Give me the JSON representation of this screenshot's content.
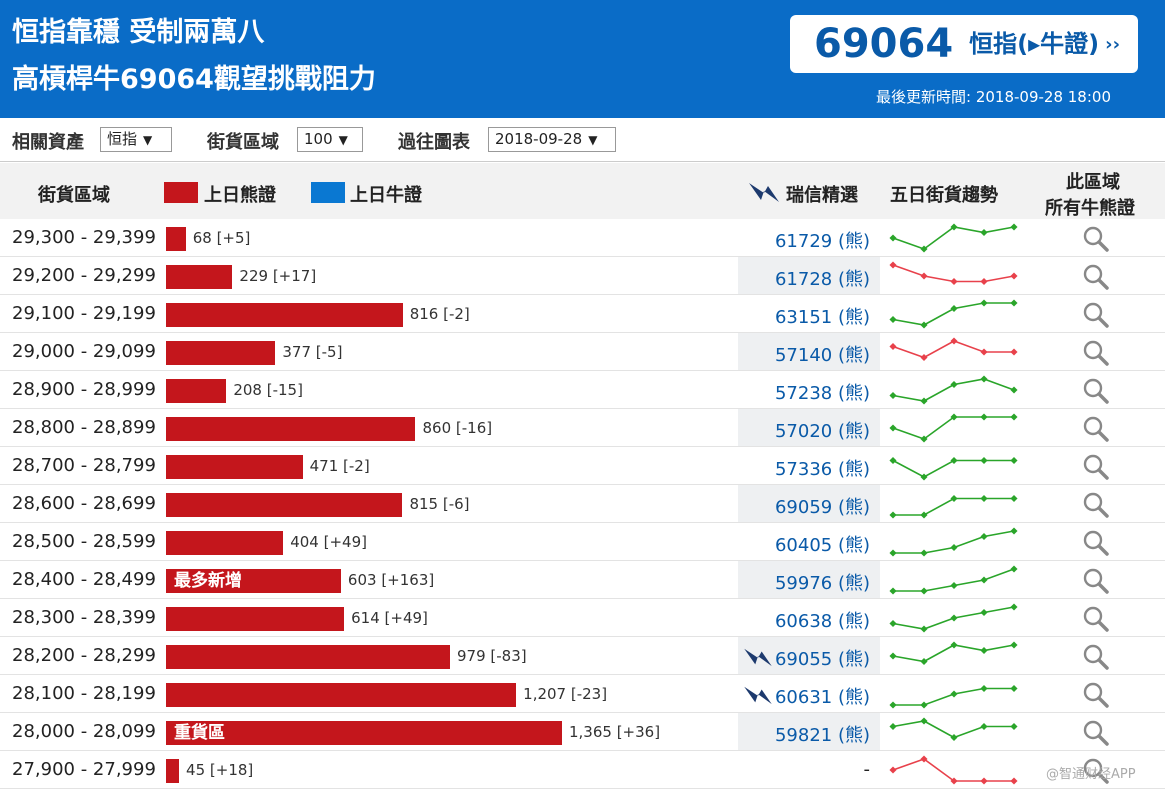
{
  "header": {
    "headline_line1": "恒指靠穩 受制兩萬八",
    "headline_line2": "高槓桿牛69064觀望挑戰阻力",
    "quote_number": "69064",
    "quote_name": "恒指(▸牛證)",
    "quote_arrow": "››",
    "updated": "最後更新時間: 2018-09-28 18:00"
  },
  "filters": {
    "asset_label": "相關資產",
    "asset_value": "恒指",
    "zone_label": "街貨區域",
    "zone_value": "100",
    "chart_label": "過往圖表",
    "chart_value": "2018-09-28",
    "caret": "▼"
  },
  "table_header": {
    "zone": "街貨區域",
    "bear_legend": "上日熊證",
    "bull_legend": "上日牛證",
    "ubs_pick": "瑞信精選",
    "trend": "五日街貨趨勢",
    "all_line1": "此區域",
    "all_line2": "所有牛熊證"
  },
  "colors": {
    "banner": "#0a6cc7",
    "bear": "#c4161c",
    "bull": "#0a78d2",
    "trend_up": "#2aa52a",
    "trend_down": "#e8414b",
    "link": "#0a5aa8"
  },
  "scale_max": 1365,
  "rows": [
    {
      "range": "29,300 - 29,399",
      "value": 68,
      "label": "68 [+5]",
      "tag": "",
      "pick": "61729 (熊)",
      "pick_logo": false,
      "trend_color": "up",
      "trend": [
        3,
        1,
        5,
        4,
        5
      ]
    },
    {
      "range": "29,200 - 29,299",
      "value": 229,
      "label": "229 [+17]",
      "tag": "",
      "pick": "61728 (熊)",
      "pick_logo": false,
      "trend_color": "down",
      "trend": [
        5,
        3,
        2,
        2,
        3
      ]
    },
    {
      "range": "29,100 - 29,199",
      "value": 816,
      "label": "816 [-2]",
      "tag": "",
      "pick": "63151 (熊)",
      "pick_logo": false,
      "trend_color": "up",
      "trend": [
        2,
        1,
        4,
        5,
        5
      ]
    },
    {
      "range": "29,000 - 29,099",
      "value": 377,
      "label": "377 [-5]",
      "tag": "",
      "pick": "57140 (熊)",
      "pick_logo": false,
      "trend_color": "down",
      "trend": [
        4,
        2,
        5,
        3,
        3
      ]
    },
    {
      "range": "28,900 - 28,999",
      "value": 208,
      "label": "208 [-15]",
      "tag": "",
      "pick": "57238 (熊)",
      "pick_logo": false,
      "trend_color": "up",
      "trend": [
        2,
        1,
        4,
        5,
        3
      ]
    },
    {
      "range": "28,800 - 28,899",
      "value": 860,
      "label": "860 [-16]",
      "tag": "",
      "pick": "57020 (熊)",
      "pick_logo": false,
      "trend_color": "up",
      "trend": [
        3,
        1,
        5,
        5,
        5
      ]
    },
    {
      "range": "28,700 - 28,799",
      "value": 471,
      "label": "471 [-2]",
      "tag": "",
      "pick": "57336 (熊)",
      "pick_logo": false,
      "trend_color": "up",
      "trend": [
        4,
        1,
        4,
        4,
        4
      ]
    },
    {
      "range": "28,600 - 28,699",
      "value": 815,
      "label": "815 [-6]",
      "tag": "",
      "pick": "69059 (熊)",
      "pick_logo": false,
      "trend_color": "up",
      "trend": [
        1,
        1,
        4,
        4,
        4
      ]
    },
    {
      "range": "28,500 - 28,599",
      "value": 404,
      "label": "404 [+49]",
      "tag": "",
      "pick": "60405 (熊)",
      "pick_logo": false,
      "trend_color": "up",
      "trend": [
        1,
        1,
        2,
        4,
        5
      ]
    },
    {
      "range": "28,400 - 28,499",
      "value": 603,
      "label": "603 [+163]",
      "tag": "最多新增",
      "pick": "59976 (熊)",
      "pick_logo": false,
      "trend_color": "up",
      "trend": [
        1,
        1,
        2,
        3,
        5
      ]
    },
    {
      "range": "28,300 - 28,399",
      "value": 614,
      "label": "614 [+49]",
      "tag": "",
      "pick": "60638 (熊)",
      "pick_logo": false,
      "trend_color": "up",
      "trend": [
        2,
        1,
        3,
        4,
        5
      ]
    },
    {
      "range": "28,200 - 28,299",
      "value": 979,
      "label": "979 [-83]",
      "tag": "",
      "pick": "69055 (熊)",
      "pick_logo": true,
      "trend_color": "up",
      "trend": [
        3,
        2,
        5,
        4,
        5
      ]
    },
    {
      "range": "28,100 - 28,199",
      "value": 1207,
      "label": "1,207 [-23]",
      "tag": "",
      "pick": "60631 (熊)",
      "pick_logo": true,
      "trend_color": "up",
      "trend": [
        1,
        1,
        3,
        4,
        4
      ]
    },
    {
      "range": "28,000 - 28,099",
      "value": 1365,
      "label": "1,365 [+36]",
      "tag": "重貨區",
      "pick": "59821 (熊)",
      "pick_logo": false,
      "trend_color": "up",
      "trend": [
        4,
        5,
        2,
        4,
        4
      ]
    },
    {
      "range": "27,900 - 27,999",
      "value": 45,
      "label": "45 [+18]",
      "tag": "",
      "pick": "-",
      "pick_logo": false,
      "trend_color": "down",
      "trend": [
        3,
        5,
        1,
        1,
        1
      ]
    }
  ],
  "watermark": "@智通财经APP"
}
